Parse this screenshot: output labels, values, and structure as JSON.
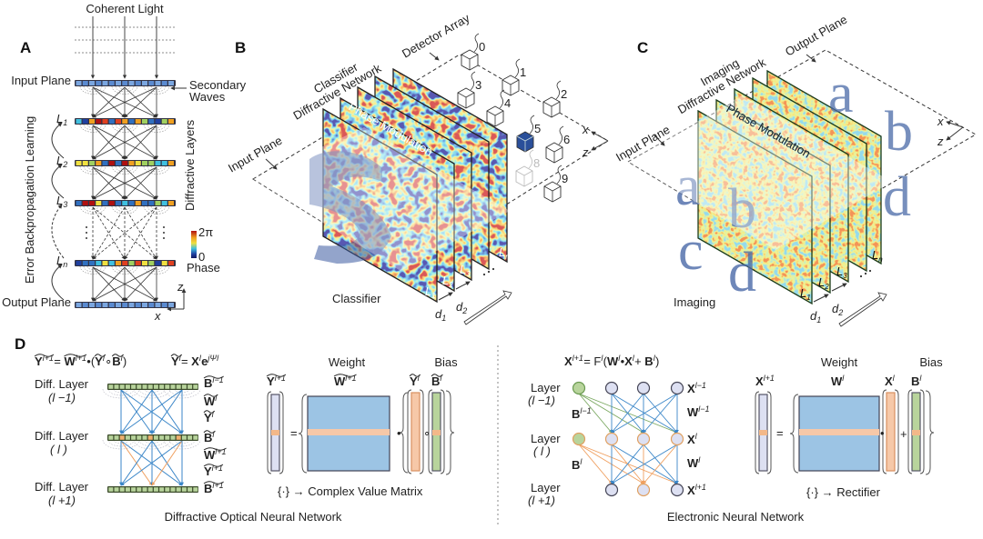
{
  "panel_a": {
    "label": "A",
    "coherent_light": "Coherent Light",
    "input_plane": "Input Plane",
    "output_plane": "Output Plane",
    "secondary_waves": [
      "Secondary",
      "Waves"
    ],
    "diffractive_layers": "Diffractive Layers",
    "error_backprop": "Error Backpropagation Learning",
    "layers": [
      {
        "name": "L",
        "sub": "1"
      },
      {
        "name": "L",
        "sub": "2"
      },
      {
        "name": "L",
        "sub": "3"
      },
      {
        "name": "L",
        "sub": "n"
      }
    ],
    "colorbar": {
      "max": "2π",
      "min": "0",
      "label": "Phase",
      "colormap": [
        "#b01010",
        "#f0a020",
        "#f0e040",
        "#40c0e0",
        "#2040a0",
        "#101860"
      ]
    },
    "axes": {
      "z": "z",
      "x": "x"
    }
  },
  "panel_b": {
    "label": "B",
    "input_plane": "Input Plane",
    "network": [
      "Classifier",
      "Diffractive Network"
    ],
    "detector_array": "Detector Array",
    "phase_modulation": "Phase Modulation",
    "caption": "Classifier",
    "detectors": [
      "0",
      "1",
      "2",
      "3",
      "4",
      "5",
      "6",
      "8",
      "9"
    ],
    "active_detector": "5",
    "layers": [
      {
        "name": "L",
        "sub": "1"
      },
      {
        "name": "L",
        "sub": "2"
      },
      {
        "name": "L",
        "sub": "3"
      },
      {
        "name": "L",
        "sub": "n"
      }
    ],
    "distances": [
      {
        "name": "d",
        "sub": "1"
      },
      {
        "name": "d",
        "sub": "2"
      }
    ],
    "axes": {
      "x": "x",
      "z": "z"
    }
  },
  "panel_c": {
    "label": "C",
    "input_plane": "Input Plane",
    "network": [
      "Imaging",
      "Diffractive Network"
    ],
    "output_plane": "Output Plane",
    "phase_modulation": "Phase Modulation",
    "caption": "Imaging",
    "input_letters": [
      "a",
      "b",
      "c",
      "d"
    ],
    "output_letters": [
      "a",
      "b",
      "d"
    ],
    "layers": [
      {
        "name": "L",
        "sub": "1"
      },
      {
        "name": "L",
        "sub": "2"
      },
      {
        "name": "L",
        "sub": "3"
      },
      {
        "name": "L",
        "sub": "n"
      }
    ],
    "distances": [
      {
        "name": "d",
        "sub": "1"
      },
      {
        "name": "d",
        "sub": "2"
      }
    ],
    "axes": {
      "x": "x",
      "z": "z"
    }
  },
  "panel_d": {
    "label": "D",
    "donn": {
      "title": "Diffractive Optical Neural Network",
      "eq1": [
        {
          "t": "Y",
          "sup": "l+1",
          "tilde": true,
          "bold": true
        },
        {
          "t": " = "
        },
        {
          "t": "W",
          "sup": "l+1",
          "tilde": true,
          "bold": true
        },
        {
          "t": "•("
        },
        {
          "t": "Y",
          "sup": "l",
          "tilde": true,
          "bold": true
        },
        {
          "t": "∘"
        },
        {
          "t": "B",
          "sup": "l",
          "tilde": true,
          "bold": true
        },
        {
          "t": ")"
        }
      ],
      "eq2": [
        {
          "t": "Y",
          "sup": "l",
          "tilde": true,
          "bold": true
        },
        {
          "t": " = "
        },
        {
          "t": "X",
          "sup": "l",
          "bold": true
        },
        {
          "t": "e",
          "sup": "jΨ",
          "bold": true
        },
        {
          "t": "",
          "sup": "l"
        }
      ],
      "layers": [
        {
          "name": "Diff. Layer",
          "index": "(l −1)"
        },
        {
          "name": "Diff. Layer",
          "index": "( l )"
        },
        {
          "name": "Diff. Layer",
          "index": "(l +1)"
        }
      ],
      "side_labels": [
        [
          {
            "t": "B",
            "sup": "l−1",
            "tilde": true,
            "bold": true
          }
        ],
        [
          {
            "t": "W",
            "sup": "l",
            "tilde": true,
            "bold": true
          }
        ],
        [
          {
            "t": "Y",
            "sup": "l",
            "tilde": true,
            "bold": true
          }
        ],
        [
          {
            "t": "B",
            "sup": "l",
            "tilde": true,
            "bold": true
          }
        ],
        [
          {
            "t": "W",
            "sup": "l+1",
            "tilde": true,
            "bold": true
          }
        ],
        [
          {
            "t": "Y",
            "sup": "l+1",
            "tilde": true,
            "bold": true
          }
        ],
        [
          {
            "t": "B",
            "sup": "l+1",
            "tilde": true,
            "bold": true
          }
        ]
      ],
      "matrix": {
        "weight": "Weight",
        "bias": "Bias",
        "out": [
          {
            "t": "Y",
            "sup": "l+1",
            "tilde": true,
            "bold": true
          }
        ],
        "w": [
          {
            "t": "W",
            "sup": "l+1",
            "tilde": true,
            "bold": true
          }
        ],
        "in": [
          {
            "t": "Y",
            "sup": "l",
            "tilde": true,
            "bold": true
          }
        ],
        "b": [
          {
            "t": "B",
            "sup": "l",
            "tilde": true,
            "bold": true
          }
        ],
        "eq": "=",
        "dot": "•",
        "op": "∘",
        "note": "{·} → Complex Value Matrix"
      }
    },
    "enn": {
      "title": "Electronic Neural Network",
      "eq": [
        {
          "t": "X",
          "sup": "l+1",
          "bold": true
        },
        {
          "t": " = F"
        },
        {
          "t": "",
          "sup": "l"
        },
        {
          "t": "("
        },
        {
          "t": "W",
          "sup": "l",
          "bold": true
        },
        {
          "t": "•"
        },
        {
          "t": "X",
          "sup": "l",
          "bold": true
        },
        {
          "t": " + "
        },
        {
          "t": "B",
          "sup": "l",
          "bold": true
        },
        {
          "t": ")"
        }
      ],
      "layers": [
        {
          "name": "Layer",
          "index": "(l −1)"
        },
        {
          "name": "Layer",
          "index": "( l )"
        },
        {
          "name": "Layer",
          "index": "(l +1)"
        }
      ],
      "right_labels": [
        [
          {
            "t": "X",
            "sup": "l−1",
            "bold": true
          }
        ],
        [
          {
            "t": "W",
            "sup": "l−1",
            "bold": true
          }
        ],
        [
          {
            "t": "X",
            "sup": "l",
            "bold": true
          }
        ],
        [
          {
            "t": "W",
            "sup": "l",
            "bold": true
          }
        ],
        [
          {
            "t": "X",
            "sup": "l+1",
            "bold": true
          }
        ]
      ],
      "bias_labels": [
        [
          {
            "t": "B",
            "sup": "l−1",
            "bold": true
          }
        ],
        [
          {
            "t": "B",
            "sup": "l",
            "bold": true
          }
        ]
      ],
      "matrix": {
        "weight": "Weight",
        "bias": "Bias",
        "out": [
          {
            "t": "X",
            "sup": "l+1",
            "bold": true
          }
        ],
        "w": [
          {
            "t": "W",
            "sup": "l",
            "bold": true
          }
        ],
        "in": [
          {
            "t": "X",
            "sup": "l",
            "bold": true
          }
        ],
        "b": [
          {
            "t": "B",
            "sup": "l",
            "bold": true
          }
        ],
        "eq": "=",
        "dot": "•",
        "op": "+",
        "note": "{·} → Rectifier"
      }
    }
  },
  "colors": {
    "blue_line": "#3a86c8",
    "orange_line": "#f0a060",
    "green_line": "#7aa860",
    "matrix_blue": "#9cc4e4",
    "highlight_orange": "#f6c8a8",
    "bias_green": "#b8d49c",
    "node_fill": "#dde0f2",
    "letter_blue": "#4a6aa8"
  }
}
